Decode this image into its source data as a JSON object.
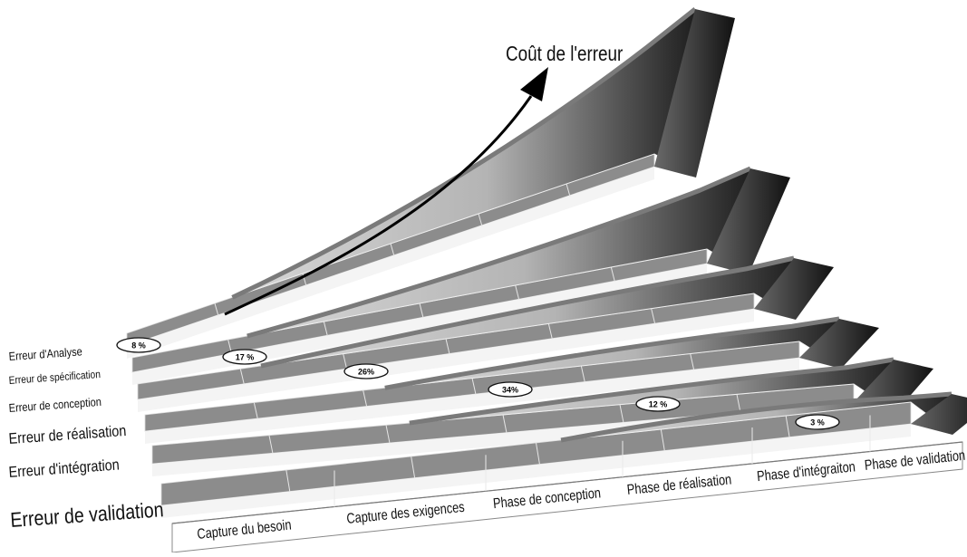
{
  "title": "Coût de l'erreur",
  "error_types": [
    {
      "label": "Erreur d'Analyse",
      "percent": "8 %"
    },
    {
      "label": "Erreur de spécification",
      "percent": "17 %"
    },
    {
      "label": "Erreur de conception",
      "percent": "26%"
    },
    {
      "label": "Erreur de réalisation",
      "percent": "34%"
    },
    {
      "label": "Erreur d'intégration",
      "percent": "12 %"
    },
    {
      "label": "Erreur de validation",
      "percent": "3 %"
    }
  ],
  "phases": [
    "Capture du besoin",
    "Capture des exigences",
    "Phase de conception",
    "Phase de réalisation",
    "Phase d'intégraiton",
    "Phase de validation"
  ],
  "colors": {
    "slab_top": "#8c8c8c",
    "slab_front": "#f4f4f4",
    "wall_light": "#e2e2e2",
    "wall_dark": "#1e1e1e",
    "arrow": "#000000"
  }
}
